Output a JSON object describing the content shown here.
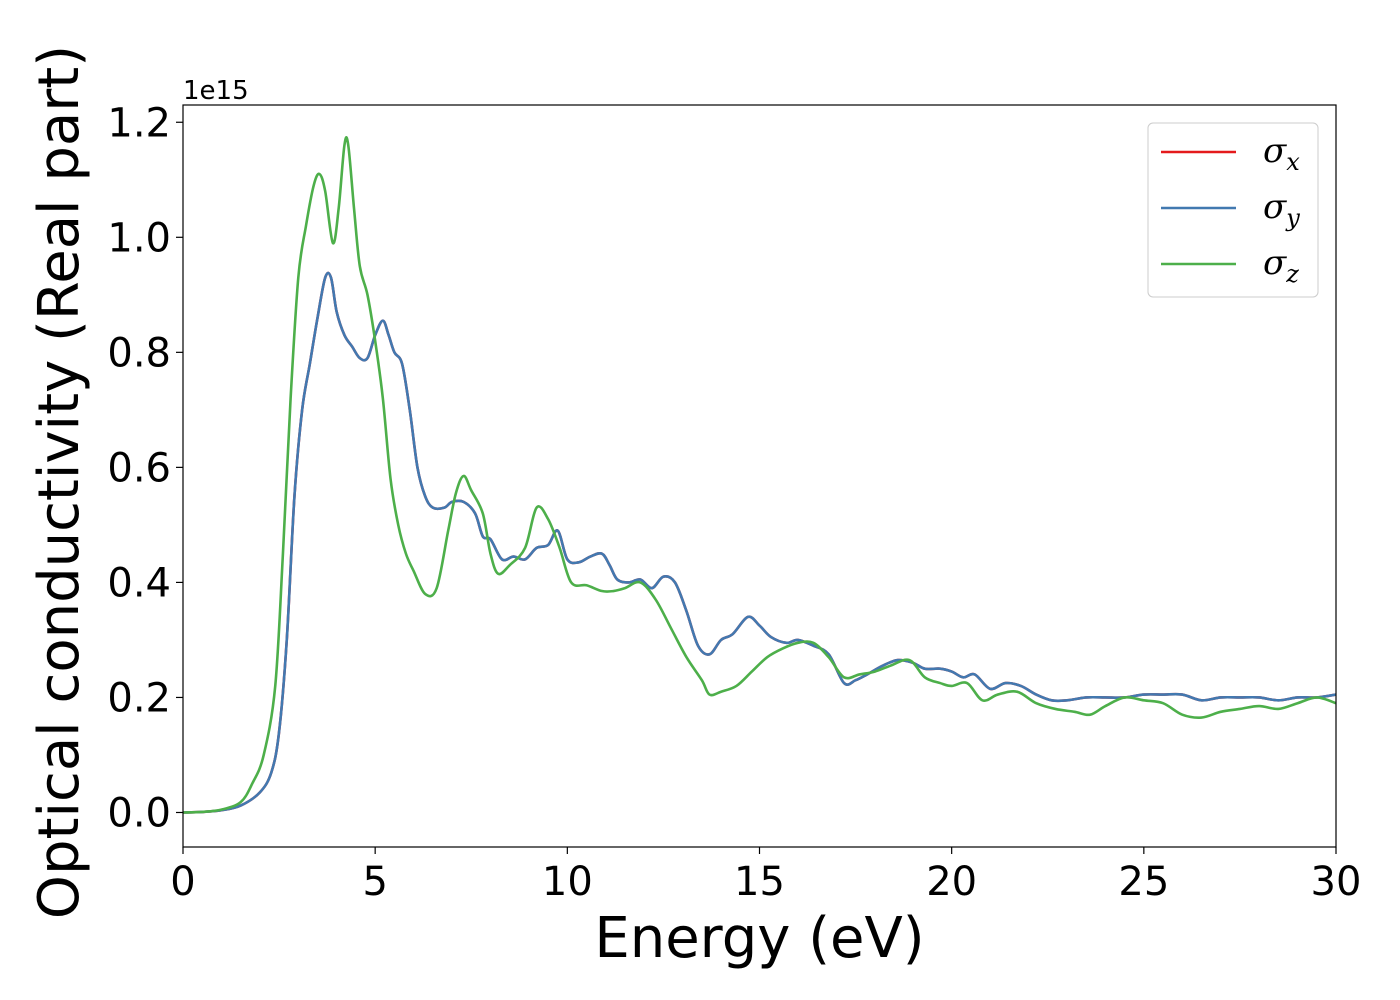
{
  "chart_data": {
    "type": "line",
    "title": "",
    "xlabel": "Energy (eV)",
    "ylabel": "Optical conductivity (Real part)",
    "y_offset_label": "1e15",
    "xlim": [
      0,
      30
    ],
    "ylim": [
      -0.06,
      1.23
    ],
    "xticks": [
      0,
      5,
      10,
      15,
      20,
      25,
      30
    ],
    "xtick_labels": [
      "0",
      "5",
      "10",
      "15",
      "20",
      "25",
      "30"
    ],
    "yticks": [
      0.0,
      0.2,
      0.4,
      0.6,
      0.8,
      1.0,
      1.2
    ],
    "ytick_labels": [
      "0.0",
      "0.2",
      "0.4",
      "0.6",
      "0.8",
      "1.0",
      "1.2"
    ],
    "grid": false,
    "legend_position": "top-right",
    "series": [
      {
        "name": "σx",
        "legend_symbol": "σ",
        "legend_sub": "x",
        "color": "#e41a1c",
        "x": [
          0,
          0.5,
          1.0,
          1.5,
          2.0,
          2.3,
          2.5,
          2.7,
          2.9,
          3.1,
          3.3,
          3.5,
          3.7,
          3.85,
          4.0,
          4.2,
          4.4,
          4.6,
          4.8,
          5.0,
          5.2,
          5.35,
          5.5,
          5.7,
          5.9,
          6.1,
          6.3,
          6.5,
          6.8,
          7.0,
          7.3,
          7.6,
          7.8,
          8.0,
          8.3,
          8.6,
          8.9,
          9.2,
          9.5,
          9.75,
          10.0,
          10.3,
          10.6,
          10.9,
          11.1,
          11.3,
          11.6,
          11.9,
          12.2,
          12.5,
          12.8,
          13.1,
          13.4,
          13.7,
          14.0,
          14.3,
          14.7,
          15.0,
          15.3,
          15.7,
          16.0,
          16.4,
          16.8,
          17.2,
          17.5,
          17.8,
          18.2,
          18.6,
          19.0,
          19.3,
          19.7,
          20.0,
          20.3,
          20.6,
          21.0,
          21.4,
          21.8,
          22.2,
          22.6,
          23.0,
          23.5,
          24.0,
          24.5,
          25.0,
          25.5,
          26.0,
          26.5,
          27.0,
          27.5,
          28.0,
          28.5,
          29.0,
          29.5,
          30.0
        ],
        "y": [
          0.0,
          0.001,
          0.004,
          0.012,
          0.035,
          0.07,
          0.14,
          0.3,
          0.55,
          0.7,
          0.78,
          0.86,
          0.93,
          0.93,
          0.87,
          0.83,
          0.81,
          0.79,
          0.79,
          0.83,
          0.855,
          0.83,
          0.8,
          0.78,
          0.7,
          0.6,
          0.55,
          0.53,
          0.53,
          0.54,
          0.54,
          0.52,
          0.48,
          0.475,
          0.44,
          0.445,
          0.44,
          0.46,
          0.465,
          0.49,
          0.44,
          0.435,
          0.445,
          0.45,
          0.43,
          0.405,
          0.4,
          0.405,
          0.39,
          0.41,
          0.4,
          0.35,
          0.29,
          0.275,
          0.3,
          0.31,
          0.34,
          0.325,
          0.305,
          0.295,
          0.3,
          0.29,
          0.275,
          0.225,
          0.23,
          0.24,
          0.255,
          0.265,
          0.26,
          0.25,
          0.25,
          0.245,
          0.235,
          0.24,
          0.215,
          0.225,
          0.22,
          0.205,
          0.195,
          0.195,
          0.2,
          0.2,
          0.2,
          0.205,
          0.205,
          0.205,
          0.195,
          0.2,
          0.2,
          0.2,
          0.195,
          0.2,
          0.2,
          0.205
        ]
      },
      {
        "name": "σy",
        "legend_symbol": "σ",
        "legend_sub": "y",
        "color": "#4279b0",
        "x": [
          0,
          0.5,
          1.0,
          1.5,
          2.0,
          2.3,
          2.5,
          2.7,
          2.9,
          3.1,
          3.3,
          3.5,
          3.7,
          3.85,
          4.0,
          4.2,
          4.4,
          4.6,
          4.8,
          5.0,
          5.2,
          5.35,
          5.5,
          5.7,
          5.9,
          6.1,
          6.3,
          6.5,
          6.8,
          7.0,
          7.3,
          7.6,
          7.8,
          8.0,
          8.3,
          8.6,
          8.9,
          9.2,
          9.5,
          9.75,
          10.0,
          10.3,
          10.6,
          10.9,
          11.1,
          11.3,
          11.6,
          11.9,
          12.2,
          12.5,
          12.8,
          13.1,
          13.4,
          13.7,
          14.0,
          14.3,
          14.7,
          15.0,
          15.3,
          15.7,
          16.0,
          16.4,
          16.8,
          17.2,
          17.5,
          17.8,
          18.2,
          18.6,
          19.0,
          19.3,
          19.7,
          20.0,
          20.3,
          20.6,
          21.0,
          21.4,
          21.8,
          22.2,
          22.6,
          23.0,
          23.5,
          24.0,
          24.5,
          25.0,
          25.5,
          26.0,
          26.5,
          27.0,
          27.5,
          28.0,
          28.5,
          29.0,
          29.5,
          30.0
        ],
        "y": [
          0.0,
          0.001,
          0.004,
          0.012,
          0.035,
          0.07,
          0.14,
          0.3,
          0.55,
          0.7,
          0.78,
          0.86,
          0.93,
          0.93,
          0.87,
          0.83,
          0.81,
          0.79,
          0.79,
          0.83,
          0.855,
          0.83,
          0.8,
          0.78,
          0.7,
          0.6,
          0.55,
          0.53,
          0.53,
          0.54,
          0.54,
          0.52,
          0.48,
          0.475,
          0.44,
          0.445,
          0.44,
          0.46,
          0.465,
          0.49,
          0.44,
          0.435,
          0.445,
          0.45,
          0.43,
          0.405,
          0.4,
          0.405,
          0.39,
          0.41,
          0.4,
          0.35,
          0.29,
          0.275,
          0.3,
          0.31,
          0.34,
          0.325,
          0.305,
          0.295,
          0.3,
          0.29,
          0.275,
          0.225,
          0.23,
          0.24,
          0.255,
          0.265,
          0.26,
          0.25,
          0.25,
          0.245,
          0.235,
          0.24,
          0.215,
          0.225,
          0.22,
          0.205,
          0.195,
          0.195,
          0.2,
          0.2,
          0.2,
          0.205,
          0.205,
          0.205,
          0.195,
          0.2,
          0.2,
          0.2,
          0.195,
          0.2,
          0.2,
          0.205
        ]
      },
      {
        "name": "σz",
        "legend_symbol": "σ",
        "legend_sub": "z",
        "color": "#4daf4a",
        "x": [
          0,
          0.5,
          1.0,
          1.5,
          1.8,
          2.1,
          2.4,
          2.6,
          2.8,
          3.0,
          3.2,
          3.4,
          3.55,
          3.7,
          3.9,
          4.05,
          4.2,
          4.3,
          4.45,
          4.6,
          4.8,
          5.0,
          5.2,
          5.4,
          5.6,
          5.8,
          6.0,
          6.3,
          6.6,
          6.9,
          7.1,
          7.3,
          7.5,
          7.8,
          8.0,
          8.2,
          8.5,
          8.9,
          9.2,
          9.5,
          9.8,
          10.1,
          10.5,
          10.9,
          11.2,
          11.5,
          11.9,
          12.3,
          12.7,
          13.1,
          13.5,
          13.7,
          14.0,
          14.4,
          14.8,
          15.2,
          15.6,
          16.0,
          16.4,
          16.8,
          17.2,
          17.6,
          18.0,
          18.4,
          18.9,
          19.3,
          19.7,
          20.0,
          20.4,
          20.8,
          21.2,
          21.7,
          22.2,
          22.7,
          23.2,
          23.6,
          24.0,
          24.5,
          25.0,
          25.5,
          26.0,
          26.5,
          27.0,
          27.5,
          28.0,
          28.5,
          29.0,
          29.5,
          30.0
        ],
        "y": [
          0.0,
          0.001,
          0.005,
          0.018,
          0.05,
          0.1,
          0.22,
          0.45,
          0.72,
          0.93,
          1.02,
          1.09,
          1.11,
          1.08,
          0.99,
          1.05,
          1.16,
          1.16,
          1.05,
          0.95,
          0.9,
          0.82,
          0.72,
          0.58,
          0.5,
          0.45,
          0.42,
          0.38,
          0.39,
          0.49,
          0.555,
          0.585,
          0.56,
          0.52,
          0.45,
          0.415,
          0.43,
          0.46,
          0.53,
          0.51,
          0.46,
          0.4,
          0.395,
          0.385,
          0.385,
          0.39,
          0.4,
          0.37,
          0.32,
          0.27,
          0.23,
          0.205,
          0.21,
          0.22,
          0.245,
          0.27,
          0.285,
          0.295,
          0.295,
          0.27,
          0.235,
          0.24,
          0.245,
          0.255,
          0.265,
          0.235,
          0.225,
          0.22,
          0.225,
          0.195,
          0.205,
          0.21,
          0.19,
          0.18,
          0.175,
          0.17,
          0.185,
          0.2,
          0.195,
          0.19,
          0.17,
          0.165,
          0.175,
          0.18,
          0.185,
          0.18,
          0.19,
          0.2,
          0.19
        ]
      }
    ]
  }
}
